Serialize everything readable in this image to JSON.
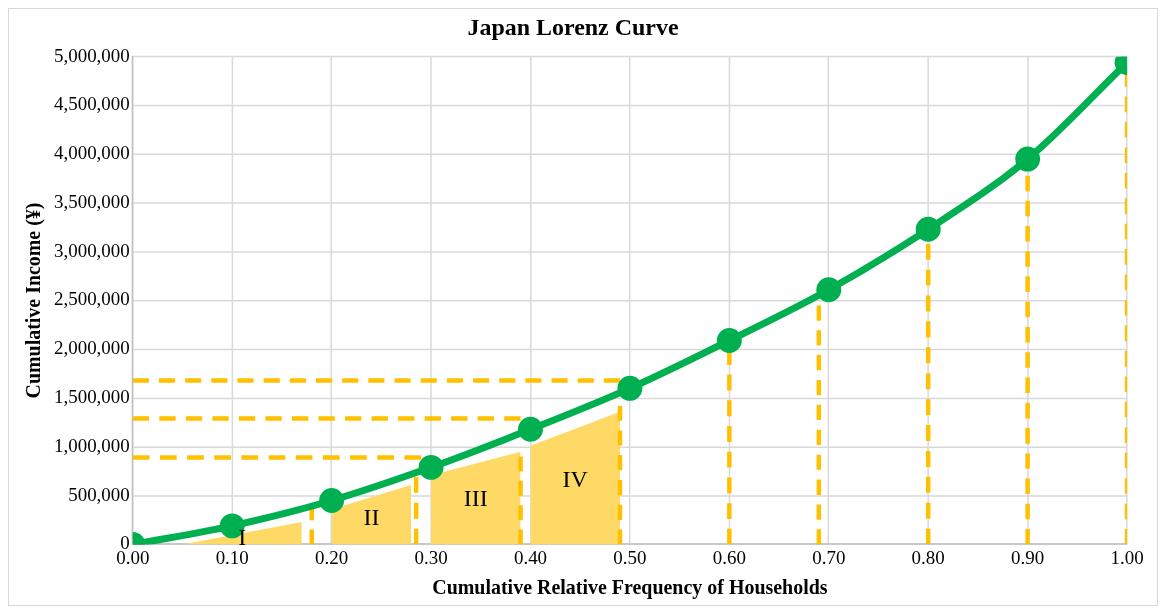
{
  "chart_data": {
    "type": "line",
    "title": "Japan Lorenz Curve",
    "xlabel": "Cumulative Relative Frequency of Households",
    "ylabel": "Cumulative Income (¥)",
    "xlim": [
      0,
      1
    ],
    "xticks": [
      {
        "value": 0,
        "label": "0.00"
      },
      {
        "value": 0.1,
        "label": "0.10"
      },
      {
        "value": 0.2,
        "label": "0.20"
      },
      {
        "value": 0.3,
        "label": "0.30"
      },
      {
        "value": 0.4,
        "label": "0.40"
      },
      {
        "value": 0.5,
        "label": "0.50"
      },
      {
        "value": 0.6,
        "label": "0.60"
      },
      {
        "value": 0.7,
        "label": "0.70"
      },
      {
        "value": 0.8,
        "label": "0.80"
      },
      {
        "value": 0.9,
        "label": "0.90"
      },
      {
        "value": 1,
        "label": "1.00"
      }
    ],
    "ylim": [
      0,
      5000000
    ],
    "yticks": [
      0,
      {
        "value": 500000,
        "label": "500,000"
      },
      {
        "value": 1000000,
        "label": "1,000,000"
      },
      {
        "value": 1500000,
        "label": "1,500,000"
      },
      {
        "value": 2000000,
        "label": "2,000,000"
      },
      {
        "value": 2500000,
        "label": "2,500,000"
      },
      {
        "value": 3000000,
        "label": "3,000,000"
      },
      {
        "value": 3500000,
        "label": "3,500,000"
      },
      {
        "value": 4000000,
        "label": "4,000,000"
      },
      {
        "value": 4500000,
        "label": "4,500,000"
      },
      {
        "value": 5000000,
        "label": "5,000,000"
      }
    ],
    "grid": true,
    "legend": false,
    "series": [
      {
        "type": "area",
        "color": "#ffd966",
        "x": [
          0.05,
          0.17
        ],
        "values": [
          0,
          230000
        ]
      },
      {
        "type": "area",
        "color": "#ffd966",
        "x": [
          0.2,
          0.28
        ],
        "values": [
          360000,
          610000
        ]
      },
      {
        "type": "area",
        "color": "#ffd966",
        "x": [
          0.3,
          0.39
        ],
        "values": [
          710000,
          950000
        ]
      },
      {
        "type": "area",
        "color": "#ffd966",
        "x": [
          0.4,
          0.49
        ],
        "values": [
          1010000,
          1360000
        ]
      },
      {
        "type": "line",
        "color": "#ffc000",
        "line_style": "dashed",
        "x": [
          0,
          0.49
        ],
        "values": [
          1680000,
          1680000
        ]
      },
      {
        "type": "line",
        "color": "#ffc000",
        "line_style": "dashed",
        "x": [
          0,
          0.39
        ],
        "values": [
          1290000,
          1290000
        ]
      },
      {
        "type": "line",
        "color": "#ffc000",
        "line_style": "dashed",
        "x": [
          0,
          0.29
        ],
        "values": [
          890000,
          890000
        ]
      },
      {
        "type": "line",
        "color": "#ffc000",
        "line_style": "dashed",
        "x": [
          0.18,
          0.18
        ],
        "values": [
          0,
          400000
        ]
      },
      {
        "type": "line",
        "color": "#ffc000",
        "line_style": "dashed",
        "x": [
          0.285,
          0.285
        ],
        "values": [
          0,
          690000
        ]
      },
      {
        "type": "line",
        "color": "#ffc000",
        "line_style": "dashed",
        "x": [
          0.39,
          0.39
        ],
        "values": [
          0,
          900000
        ]
      },
      {
        "type": "line",
        "color": "#ffc000",
        "line_style": "dashed",
        "x": [
          0.49,
          0.49
        ],
        "values": [
          0,
          1420000
        ]
      },
      {
        "type": "line",
        "color": "#ffc000",
        "line_style": "dashed",
        "x": [
          0.6,
          0.6
        ],
        "values": [
          0,
          2000000
        ]
      },
      {
        "type": "line",
        "color": "#ffc000",
        "line_style": "dashed",
        "x": [
          0.69,
          0.69
        ],
        "values": [
          0,
          2450000
        ]
      },
      {
        "type": "line",
        "color": "#ffc000",
        "line_style": "dashed",
        "x": [
          0.8,
          0.8
        ],
        "values": [
          0,
          3080000
        ]
      },
      {
        "type": "line",
        "color": "#ffc000",
        "line_style": "dashed",
        "x": [
          0.9,
          0.9
        ],
        "values": [
          0,
          3780000
        ]
      },
      {
        "type": "line",
        "color": "#ffc000",
        "line_style": "dashed",
        "x": [
          1,
          1
        ],
        "values": [
          0,
          4850000
        ]
      },
      {
        "color": "#00b050",
        "marker": "circle",
        "line_style": "solid",
        "x": [
          0,
          0.1,
          0.2,
          0.3,
          0.4,
          0.5,
          0.6,
          0.7,
          0.8,
          0.9,
          1
        ],
        "values": [
          0,
          190000,
          450000,
          790000,
          1180000,
          1600000,
          2090000,
          2610000,
          3230000,
          3950000,
          4940000
        ]
      }
    ],
    "annotations": [
      "I",
      "II",
      "III",
      "IV"
    ]
  }
}
